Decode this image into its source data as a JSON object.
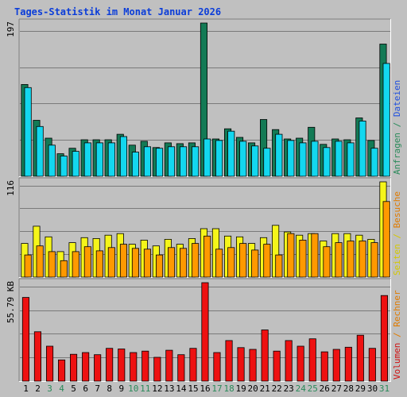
{
  "colors": {
    "title": "#0b3dd9",
    "page_bg": "#ffffff",
    "panel_bg": "#c0c0c0",
    "gridline": "#7a7a7a",
    "frame_dark": "#808080",
    "frame_light": "#ffffff",
    "weekend_day": "#2a8a5a",
    "weekday": "#000000",
    "anfragen": "#137a55",
    "dateien": "#13d7ef",
    "seiten": "#f5f51a",
    "besuche": "#ff9900",
    "rechner": "#ee1111",
    "volumen": "#ee1111",
    "right_label_anfragen": "#2a8a5a",
    "right_label_dateien": "#1f4fe0",
    "right_label_seiten": "#d4c800",
    "right_label_besuche": "#e07b00",
    "right_label_rechner": "#e07b00",
    "right_label_volumen": "#d11111"
  },
  "chart_data": {
    "title": "Tages-Statistik im Monat Januar 2026",
    "type": "bar",
    "categories": [
      "1",
      "2",
      "3",
      "4",
      "5",
      "6",
      "7",
      "8",
      "9",
      "10",
      "11",
      "12",
      "13",
      "14",
      "15",
      "16",
      "17",
      "18",
      "19",
      "20",
      "21",
      "22",
      "23",
      "24",
      "25",
      "26",
      "27",
      "28",
      "29",
      "30",
      "31"
    ],
    "weekend_days": [
      "3",
      "4",
      "10",
      "11",
      "17",
      "18",
      "24",
      "25",
      "31"
    ],
    "panels": [
      {
        "id": "top",
        "max_label": "197",
        "ymax": 197,
        "right_labels": [
          {
            "text": "Anfragen",
            "color_key": "right_label_anfragen"
          },
          {
            "text": " / ",
            "color_key": "right_label_anfragen"
          },
          {
            "text": "Dateien",
            "color_key": "right_label_dateien"
          }
        ],
        "series": [
          {
            "name": "Anfragen",
            "color_key": "anfragen",
            "values": [
              118,
              72,
              49,
              29,
              36,
              47,
              47,
              47,
              54,
              40,
              45,
              37,
              43,
              42,
              43,
              197,
              48,
              61,
              50,
              43,
              73,
              60,
              48,
              49,
              63,
              41,
              48,
              47,
              75,
              46,
              170
            ]
          },
          {
            "name": "Dateien",
            "color_key": "dateien",
            "values": [
              114,
              64,
              40,
              26,
              32,
              43,
              43,
              43,
              51,
              31,
              38,
              36,
              38,
              38,
              38,
              48,
              46,
              58,
              45,
              39,
              36,
              54,
              46,
              43,
              45,
              37,
              45,
              43,
              71,
              36,
              145
            ]
          }
        ]
      },
      {
        "id": "middle",
        "max_label": "116",
        "ymax": 116,
        "right_labels": [
          {
            "text": "Seiten",
            "color_key": "right_label_seiten"
          },
          {
            "text": " / ",
            "color_key": "right_label_seiten"
          },
          {
            "text": "Besuche",
            "color_key": "right_label_besuche"
          }
        ],
        "series": [
          {
            "name": "Seiten",
            "color_key": "seiten",
            "values": [
              41,
              62,
              49,
              31,
              42,
              48,
              47,
              51,
              53,
              40,
              45,
              38,
              46,
              40,
              47,
              59,
              59,
              50,
              49,
              41,
              48,
              63,
              55,
              51,
              53,
              44,
              53,
              53,
              51,
              46,
              116
            ]
          },
          {
            "name": "Besuche",
            "color_key": "besuche",
            "values": [
              27,
              38,
              31,
              20,
              31,
              37,
              32,
              36,
              40,
              35,
              34,
              27,
              36,
              35,
              41,
              50,
              34,
              36,
              41,
              33,
              40,
              27,
              53,
              45,
              53,
              37,
              42,
              44,
              44,
              42,
              92
            ]
          }
        ]
      },
      {
        "id": "bottom",
        "max_label": "55.79 KB",
        "ymax": 55.79,
        "right_labels": [
          {
            "text": "Volumen",
            "color_key": "right_label_volumen"
          },
          {
            "text": " / ",
            "color_key": "right_label_rechner"
          },
          {
            "text": "Rechner",
            "color_key": "right_label_rechner"
          }
        ],
        "series": [
          {
            "name": "Volumen",
            "color_key": "volumen",
            "values": [
              47.4,
              28.0,
              19.8,
              12.0,
              15.2,
              16.2,
              15.0,
              18.6,
              18.2,
              16.2,
              17.0,
              13.5,
              17.5,
              15.0,
              18.6,
              55.79,
              16.2,
              23.0,
              19.0,
              18.0,
              29.0,
              17.0,
              23.0,
              19.8,
              24.0,
              16.6,
              18.0,
              19.2,
              26.0,
              18.6,
              48.5
            ]
          }
        ]
      }
    ]
  }
}
